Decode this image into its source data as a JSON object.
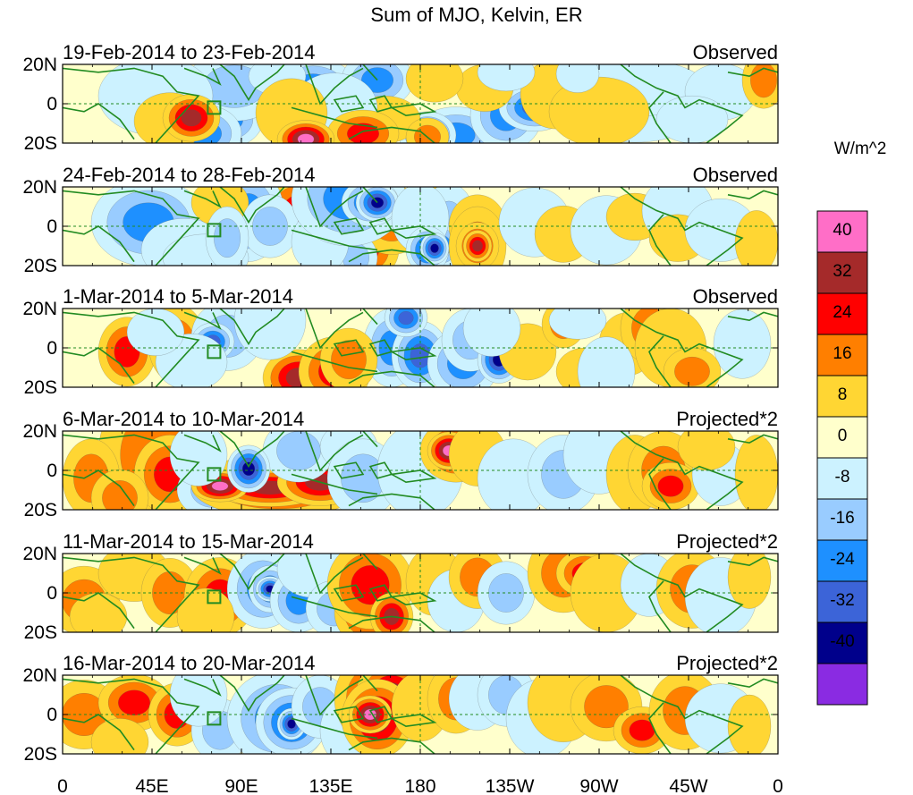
{
  "title": "Sum of MJO, Kelvin, ER",
  "units": "W/m^2",
  "panels": [
    {
      "date_range": "19-Feb-2014 to 23-Feb-2014",
      "status": "Observed"
    },
    {
      "date_range": "24-Feb-2014 to 28-Feb-2014",
      "status": "Observed"
    },
    {
      "date_range": "1-Mar-2014 to 5-Mar-2014",
      "status": "Observed"
    },
    {
      "date_range": "6-Mar-2014 to 10-Mar-2014",
      "status": "Projected*2"
    },
    {
      "date_range": "11-Mar-2014 to 15-Mar-2014",
      "status": "Projected*2"
    },
    {
      "date_range": "16-Mar-2014 to 20-Mar-2014",
      "status": "Projected*2"
    }
  ],
  "lat_labels": [
    "20N",
    "0",
    "20S"
  ],
  "lon_labels": [
    "0",
    "45E",
    "90E",
    "135E",
    "180",
    "135W",
    "90W",
    "45W",
    "0"
  ],
  "colorbar": {
    "labels": [
      "40",
      "32",
      "24",
      "16",
      "8",
      "0",
      "-8",
      "-16",
      "-24",
      "-32",
      "-40"
    ],
    "colors": [
      "#ff6ec7",
      "#a52a2a",
      "#ff0000",
      "#ff7f00",
      "#ffd633",
      "#ffffcc",
      "#ccf2ff",
      "#99ccff",
      "#1e90ff",
      "#3c64d8",
      "#00008b",
      "#8a2be2"
    ]
  },
  "map_colors": {
    "coast": "#228b22",
    "equator": "#228b22"
  },
  "anomalies": [
    [
      [
        0.18,
        0.65,
        0.07,
        0.22,
        -16
      ],
      [
        0.23,
        0.7,
        0.05,
        0.18,
        -24
      ],
      [
        0.24,
        0.28,
        0.07,
        0.22,
        -16
      ],
      [
        0.35,
        0.28,
        0.06,
        0.18,
        -24
      ],
      [
        0.13,
        0.4,
        0.08,
        0.25,
        -8
      ],
      [
        0.44,
        0.2,
        0.05,
        0.18,
        -24
      ],
      [
        0.55,
        0.9,
        0.06,
        0.18,
        -24
      ],
      [
        0.51,
        0.9,
        0.04,
        0.15,
        -32
      ],
      [
        0.62,
        0.65,
        0.05,
        0.22,
        -24
      ],
      [
        0.66,
        0.55,
        0.05,
        0.15,
        -32
      ],
      [
        0.8,
        0.55,
        0.1,
        0.22,
        -8
      ],
      [
        0.8,
        0.3,
        0.1,
        0.18,
        -8
      ],
      [
        0.2,
        0.88,
        0.05,
        0.18,
        -24
      ],
      [
        0.92,
        0.35,
        0.05,
        0.18,
        -8
      ],
      [
        0.69,
        0.38,
        0.05,
        0.22,
        8
      ],
      [
        0.75,
        0.6,
        0.07,
        0.22,
        8
      ],
      [
        0.15,
        0.72,
        0.05,
        0.18,
        8
      ],
      [
        0.59,
        0.3,
        0.04,
        0.15,
        8
      ],
      [
        0.98,
        0.2,
        0.03,
        0.18,
        16
      ],
      [
        0.52,
        0.18,
        0.04,
        0.15,
        8
      ],
      [
        0.45,
        0.7,
        0.05,
        0.15,
        8
      ],
      [
        0.38,
        0.55,
        0.06,
        0.22,
        -8
      ],
      [
        0.3,
        0.15,
        0.04,
        0.12,
        -8
      ],
      [
        0.32,
        0.62,
        0.05,
        0.22,
        8
      ],
      [
        0.62,
        0.1,
        0.04,
        0.12,
        -8
      ],
      [
        0.72,
        0.12,
        0.03,
        0.12,
        -8
      ],
      [
        0.88,
        0.7,
        0.05,
        0.15,
        -8
      ],
      [
        0.42,
        0.88,
        0.05,
        0.15,
        24
      ],
      [
        0.34,
        0.95,
        0.04,
        0.12,
        40
      ],
      [
        0.18,
        0.68,
        0.04,
        0.15,
        32
      ],
      [
        0.51,
        0.92,
        0.03,
        0.12,
        16
      ]
    ],
    [
      [
        0.42,
        0.8,
        0.05,
        0.2,
        24
      ],
      [
        0.33,
        0.3,
        0.05,
        0.22,
        24
      ],
      [
        0.46,
        0.42,
        0.05,
        0.22,
        16
      ],
      [
        0.4,
        0.6,
        0.03,
        0.2,
        24
      ],
      [
        0.41,
        0.9,
        0.03,
        0.15,
        -16
      ],
      [
        0.26,
        0.35,
        0.05,
        0.3,
        -24
      ],
      [
        0.12,
        0.45,
        0.08,
        0.28,
        -24
      ],
      [
        0.17,
        0.8,
        0.06,
        0.2,
        -8
      ],
      [
        0.22,
        0.2,
        0.04,
        0.15,
        8
      ],
      [
        0.29,
        0.5,
        0.04,
        0.2,
        -16
      ],
      [
        0.51,
        0.1,
        0.03,
        0.15,
        8
      ],
      [
        0.36,
        0.7,
        0.04,
        0.2,
        -8
      ],
      [
        0.4,
        0.15,
        0.08,
        0.3,
        -24
      ],
      [
        0.43,
        0.2,
        0.04,
        0.15,
        -32
      ],
      [
        0.44,
        0.2,
        0.03,
        0.12,
        -40
      ],
      [
        0.54,
        0.55,
        0.04,
        0.3,
        -16
      ],
      [
        0.53,
        0.75,
        0.03,
        0.15,
        -24
      ],
      [
        0.5,
        0.4,
        0.04,
        0.22,
        -8
      ],
      [
        0.51,
        0.8,
        0.03,
        0.15,
        -32
      ],
      [
        0.58,
        0.5,
        0.04,
        0.2,
        8
      ],
      [
        0.58,
        0.75,
        0.04,
        0.25,
        16
      ],
      [
        0.58,
        0.75,
        0.03,
        0.15,
        24
      ],
      [
        0.58,
        0.75,
        0.02,
        0.1,
        32
      ],
      [
        0.52,
        0.78,
        0.02,
        0.1,
        -40
      ],
      [
        0.66,
        0.45,
        0.05,
        0.22,
        -8
      ],
      [
        0.7,
        0.6,
        0.04,
        0.18,
        8
      ],
      [
        0.76,
        0.55,
        0.05,
        0.22,
        -8
      ],
      [
        0.8,
        0.38,
        0.04,
        0.15,
        8
      ],
      [
        0.86,
        0.3,
        0.05,
        0.22,
        -8
      ],
      [
        0.86,
        0.65,
        0.04,
        0.15,
        8
      ],
      [
        0.92,
        0.55,
        0.05,
        0.2,
        -8
      ],
      [
        0.97,
        0.7,
        0.03,
        0.2,
        8
      ],
      [
        0.2,
        0.9,
        0.06,
        0.15,
        -8
      ],
      [
        0.23,
        0.65,
        0.03,
        0.2,
        -16
      ]
    ],
    [
      [
        0.09,
        0.55,
        0.04,
        0.22,
        24
      ],
      [
        0.16,
        0.45,
        0.04,
        0.25,
        16
      ],
      [
        0.23,
        0.35,
        0.05,
        0.22,
        -16
      ],
      [
        0.21,
        0.42,
        0.03,
        0.12,
        -32
      ],
      [
        0.33,
        0.88,
        0.05,
        0.18,
        32
      ],
      [
        0.38,
        0.8,
        0.05,
        0.22,
        24
      ],
      [
        0.46,
        0.5,
        0.04,
        0.25,
        -24
      ],
      [
        0.5,
        0.6,
        0.04,
        0.22,
        -32
      ],
      [
        0.48,
        0.12,
        0.03,
        0.12,
        -32
      ],
      [
        0.4,
        0.65,
        0.04,
        0.2,
        16
      ],
      [
        0.29,
        0.15,
        0.05,
        0.25,
        -8
      ],
      [
        0.18,
        0.68,
        0.05,
        0.18,
        -8
      ],
      [
        0.56,
        0.7,
        0.05,
        0.22,
        -24
      ],
      [
        0.57,
        0.4,
        0.04,
        0.2,
        -16
      ],
      [
        0.61,
        0.65,
        0.03,
        0.15,
        -40
      ],
      [
        0.65,
        0.55,
        0.04,
        0.18,
        8
      ],
      [
        0.7,
        0.2,
        0.03,
        0.15,
        16
      ],
      [
        0.73,
        0.8,
        0.04,
        0.15,
        8
      ],
      [
        0.79,
        0.45,
        0.04,
        0.2,
        8
      ],
      [
        0.82,
        0.25,
        0.04,
        0.22,
        16
      ],
      [
        0.85,
        0.5,
        0.05,
        0.25,
        8
      ],
      [
        0.95,
        0.45,
        0.04,
        0.22,
        -8
      ],
      [
        0.88,
        0.8,
        0.04,
        0.15,
        16
      ],
      [
        0.6,
        0.25,
        0.04,
        0.18,
        -8
      ],
      [
        0.76,
        0.8,
        0.04,
        0.22,
        -8
      ],
      [
        0.13,
        0.3,
        0.04,
        0.15,
        -8
      ],
      [
        0.72,
        0.15,
        0.04,
        0.12,
        -8
      ]
    ],
    [
      [
        0.13,
        0.3,
        0.08,
        0.45,
        16
      ],
      [
        0.15,
        0.55,
        0.05,
        0.25,
        24
      ],
      [
        0.21,
        0.75,
        0.05,
        0.18,
        -16
      ],
      [
        0.3,
        0.7,
        0.12,
        0.2,
        24
      ],
      [
        0.29,
        0.72,
        0.08,
        0.12,
        32
      ],
      [
        0.22,
        0.7,
        0.04,
        0.1,
        40
      ],
      [
        0.36,
        0.65,
        0.06,
        0.15,
        32
      ],
      [
        0.33,
        0.25,
        0.05,
        0.2,
        -16
      ],
      [
        0.26,
        0.48,
        0.03,
        0.15,
        -40
      ],
      [
        0.4,
        0.2,
        0.04,
        0.15,
        -8
      ],
      [
        0.42,
        0.6,
        0.05,
        0.25,
        -16
      ],
      [
        0.5,
        0.5,
        0.06,
        0.3,
        -8
      ],
      [
        0.55,
        0.25,
        0.05,
        0.2,
        24
      ],
      [
        0.54,
        0.25,
        0.03,
        0.12,
        40
      ],
      [
        0.58,
        0.3,
        0.04,
        0.2,
        8
      ],
      [
        0.63,
        0.6,
        0.05,
        0.25,
        -8
      ],
      [
        0.7,
        0.55,
        0.05,
        0.25,
        -16
      ],
      [
        0.75,
        0.3,
        0.05,
        0.25,
        -8
      ],
      [
        0.8,
        0.55,
        0.04,
        0.25,
        8
      ],
      [
        0.84,
        0.5,
        0.05,
        0.25,
        16
      ],
      [
        0.85,
        0.7,
        0.04,
        0.15,
        24
      ],
      [
        0.92,
        0.55,
        0.04,
        0.2,
        -8
      ],
      [
        0.97,
        0.55,
        0.03,
        0.25,
        8
      ],
      [
        0.04,
        0.6,
        0.04,
        0.25,
        16
      ],
      [
        0.08,
        0.85,
        0.04,
        0.18,
        16
      ],
      [
        0.19,
        0.3,
        0.04,
        0.2,
        -8
      ],
      [
        0.9,
        0.2,
        0.04,
        0.15,
        8
      ]
    ],
    [
      [
        0.03,
        0.6,
        0.05,
        0.22,
        16
      ],
      [
        0.1,
        0.25,
        0.05,
        0.18,
        8
      ],
      [
        0.15,
        0.5,
        0.04,
        0.22,
        16
      ],
      [
        0.22,
        0.55,
        0.05,
        0.25,
        24
      ],
      [
        0.28,
        0.45,
        0.05,
        0.25,
        -24
      ],
      [
        0.29,
        0.45,
        0.03,
        0.15,
        -32
      ],
      [
        0.29,
        0.45,
        0.02,
        0.08,
        -40
      ],
      [
        0.33,
        0.6,
        0.04,
        0.2,
        -24
      ],
      [
        0.35,
        0.2,
        0.05,
        0.18,
        -8
      ],
      [
        0.38,
        0.7,
        0.04,
        0.18,
        -16
      ],
      [
        0.43,
        0.75,
        0.05,
        0.22,
        24
      ],
      [
        0.43,
        0.4,
        0.06,
        0.28,
        24
      ],
      [
        0.46,
        0.8,
        0.03,
        0.15,
        32
      ],
      [
        0.52,
        0.35,
        0.04,
        0.22,
        8
      ],
      [
        0.55,
        0.6,
        0.04,
        0.2,
        -8
      ],
      [
        0.58,
        0.3,
        0.04,
        0.2,
        16
      ],
      [
        0.62,
        0.5,
        0.04,
        0.2,
        -16
      ],
      [
        0.7,
        0.25,
        0.05,
        0.25,
        16
      ],
      [
        0.73,
        0.25,
        0.04,
        0.15,
        24
      ],
      [
        0.76,
        0.5,
        0.05,
        0.25,
        8
      ],
      [
        0.82,
        0.4,
        0.04,
        0.2,
        -8
      ],
      [
        0.88,
        0.45,
        0.05,
        0.25,
        16
      ],
      [
        0.92,
        0.55,
        0.05,
        0.25,
        -8
      ],
      [
        0.96,
        0.3,
        0.03,
        0.2,
        8
      ],
      [
        0.05,
        0.8,
        0.04,
        0.15,
        8
      ],
      [
        0.2,
        0.8,
        0.04,
        0.18,
        8
      ]
    ],
    [
      [
        0.03,
        0.5,
        0.05,
        0.22,
        16
      ],
      [
        0.1,
        0.35,
        0.05,
        0.18,
        24
      ],
      [
        0.16,
        0.5,
        0.04,
        0.2,
        24
      ],
      [
        0.22,
        0.7,
        0.04,
        0.2,
        -16
      ],
      [
        0.3,
        0.55,
        0.07,
        0.3,
        -24
      ],
      [
        0.32,
        0.6,
        0.05,
        0.22,
        -32
      ],
      [
        0.32,
        0.62,
        0.02,
        0.1,
        -40
      ],
      [
        0.36,
        0.4,
        0.04,
        0.2,
        -16
      ],
      [
        0.4,
        0.7,
        0.04,
        0.22,
        -8
      ],
      [
        0.44,
        0.3,
        0.06,
        0.3,
        24
      ],
      [
        0.46,
        0.25,
        0.05,
        0.22,
        32
      ],
      [
        0.44,
        0.55,
        0.05,
        0.25,
        32
      ],
      [
        0.43,
        0.5,
        0.03,
        0.12,
        40
      ],
      [
        0.5,
        0.4,
        0.04,
        0.22,
        8
      ],
      [
        0.55,
        0.3,
        0.04,
        0.22,
        16
      ],
      [
        0.58,
        0.3,
        0.04,
        0.2,
        -8
      ],
      [
        0.62,
        0.25,
        0.04,
        0.2,
        -16
      ],
      [
        0.67,
        0.55,
        0.05,
        0.25,
        -8
      ],
      [
        0.7,
        0.35,
        0.05,
        0.25,
        8
      ],
      [
        0.76,
        0.4,
        0.05,
        0.22,
        16
      ],
      [
        0.81,
        0.7,
        0.04,
        0.15,
        24
      ],
      [
        0.87,
        0.45,
        0.05,
        0.25,
        16
      ],
      [
        0.92,
        0.55,
        0.05,
        0.22,
        -8
      ],
      [
        0.96,
        0.65,
        0.03,
        0.2,
        8
      ],
      [
        0.08,
        0.85,
        0.04,
        0.15,
        8
      ],
      [
        0.19,
        0.25,
        0.04,
        0.2,
        -8
      ]
    ]
  ]
}
